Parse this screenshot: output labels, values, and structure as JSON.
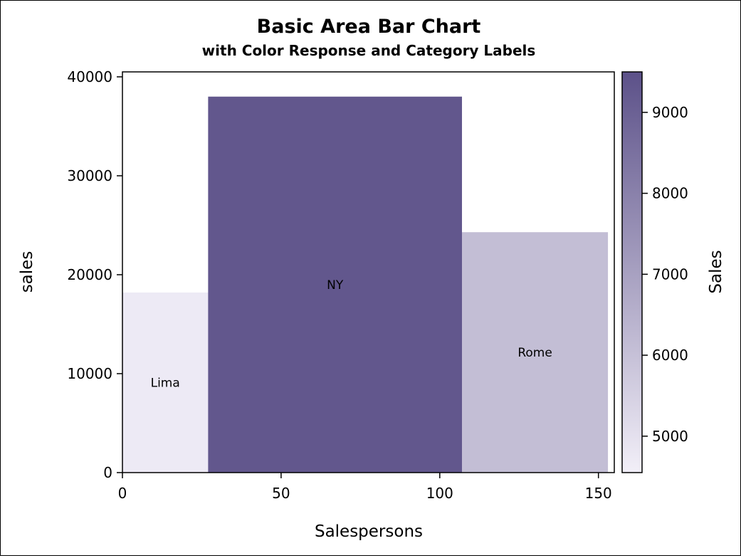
{
  "chart_data": {
    "type": "bar",
    "title": "Basic Area Bar Chart",
    "subtitle": "with Color Response and Category Labels",
    "xlabel": "Salespersons",
    "ylabel": "sales",
    "xlim": [
      0,
      155
    ],
    "ylim": [
      0,
      40500
    ],
    "x_ticks": [
      0,
      50,
      100,
      150
    ],
    "y_ticks": [
      0,
      10000,
      20000,
      30000,
      40000
    ],
    "bars": [
      {
        "label": "Lima",
        "x_start": 0,
        "x_end": 27,
        "value": 18200,
        "color_value": 4700
      },
      {
        "label": "NY",
        "x_start": 27,
        "x_end": 107,
        "value": 38000,
        "color_value": 9300
      },
      {
        "label": "Rome",
        "x_start": 107,
        "x_end": 153,
        "value": 24300,
        "color_value": 6100
      }
    ],
    "colorbar": {
      "label": "Sales",
      "range": [
        4550,
        9500
      ],
      "ticks": [
        5000,
        6000,
        7000,
        8000,
        9000
      ],
      "color_low": "#f2eff8",
      "color_high": "#5c5189"
    },
    "grid": false,
    "legend": "right"
  }
}
